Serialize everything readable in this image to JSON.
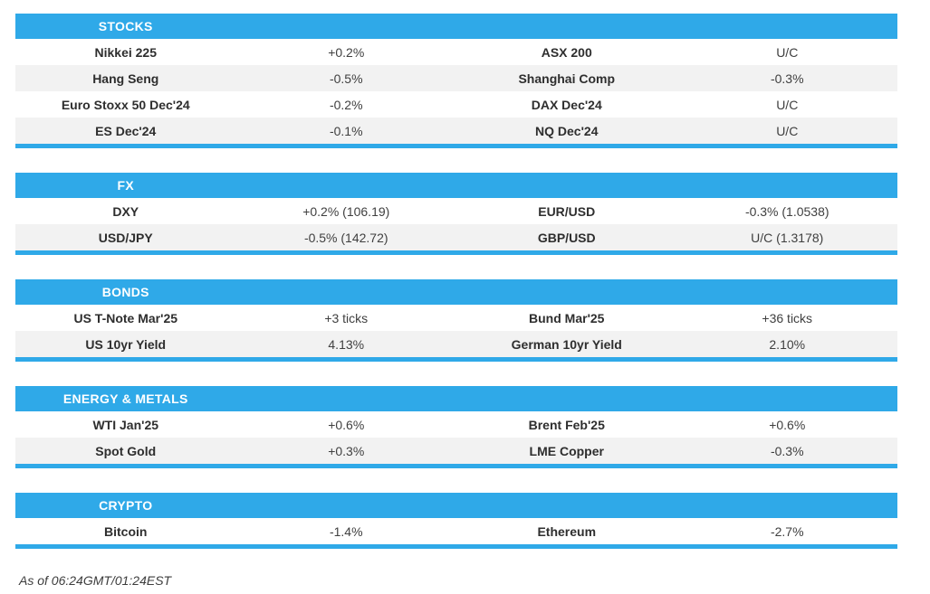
{
  "colors": {
    "accent": "#2FA9E8",
    "row_alt": "#F2F2F2",
    "header_text": "#FFFFFF",
    "label_text": "#2E2E2E",
    "value_text": "#3F3F3F",
    "caption_text": "#3D3D3D"
  },
  "chart_data": {
    "type": "table",
    "layout": {
      "columns": 4,
      "section_header_bg": "#2FA9E8",
      "alternating_rows": true
    },
    "sections": [
      {
        "title": "STOCKS",
        "rows": [
          [
            "Nikkei 225",
            "+0.2%",
            "ASX 200",
            "U/C"
          ],
          [
            "Hang Seng",
            "-0.5%",
            "Shanghai Comp",
            "-0.3%"
          ],
          [
            "Euro Stoxx 50 Dec'24",
            "-0.2%",
            "DAX Dec'24",
            "U/C"
          ],
          [
            "ES Dec'24",
            "-0.1%",
            "NQ Dec'24",
            "U/C"
          ]
        ]
      },
      {
        "title": "FX",
        "rows": [
          [
            "DXY",
            "+0.2% (106.19)",
            "EUR/USD",
            "-0.3% (1.0538)"
          ],
          [
            "USD/JPY",
            "-0.5% (142.72)",
            "GBP/USD",
            "U/C (1.3178)"
          ]
        ]
      },
      {
        "title": "BONDS",
        "rows": [
          [
            "US T-Note Mar'25",
            "+3 ticks",
            "Bund Mar'25",
            "+36 ticks"
          ],
          [
            "US 10yr Yield",
            "4.13%",
            "German 10yr Yield",
            "2.10%"
          ]
        ]
      },
      {
        "title": "ENERGY & METALS",
        "rows": [
          [
            "WTI Jan'25",
            "+0.6%",
            "Brent Feb'25",
            "+0.6%"
          ],
          [
            "Spot Gold",
            "+0.3%",
            "LME Copper",
            "-0.3%"
          ]
        ]
      },
      {
        "title": "CRYPTO",
        "rows": [
          [
            "Bitcoin",
            "-1.4%",
            "Ethereum",
            "-2.7%"
          ]
        ]
      }
    ],
    "caption": "As of 06:24GMT/01:24EST"
  }
}
